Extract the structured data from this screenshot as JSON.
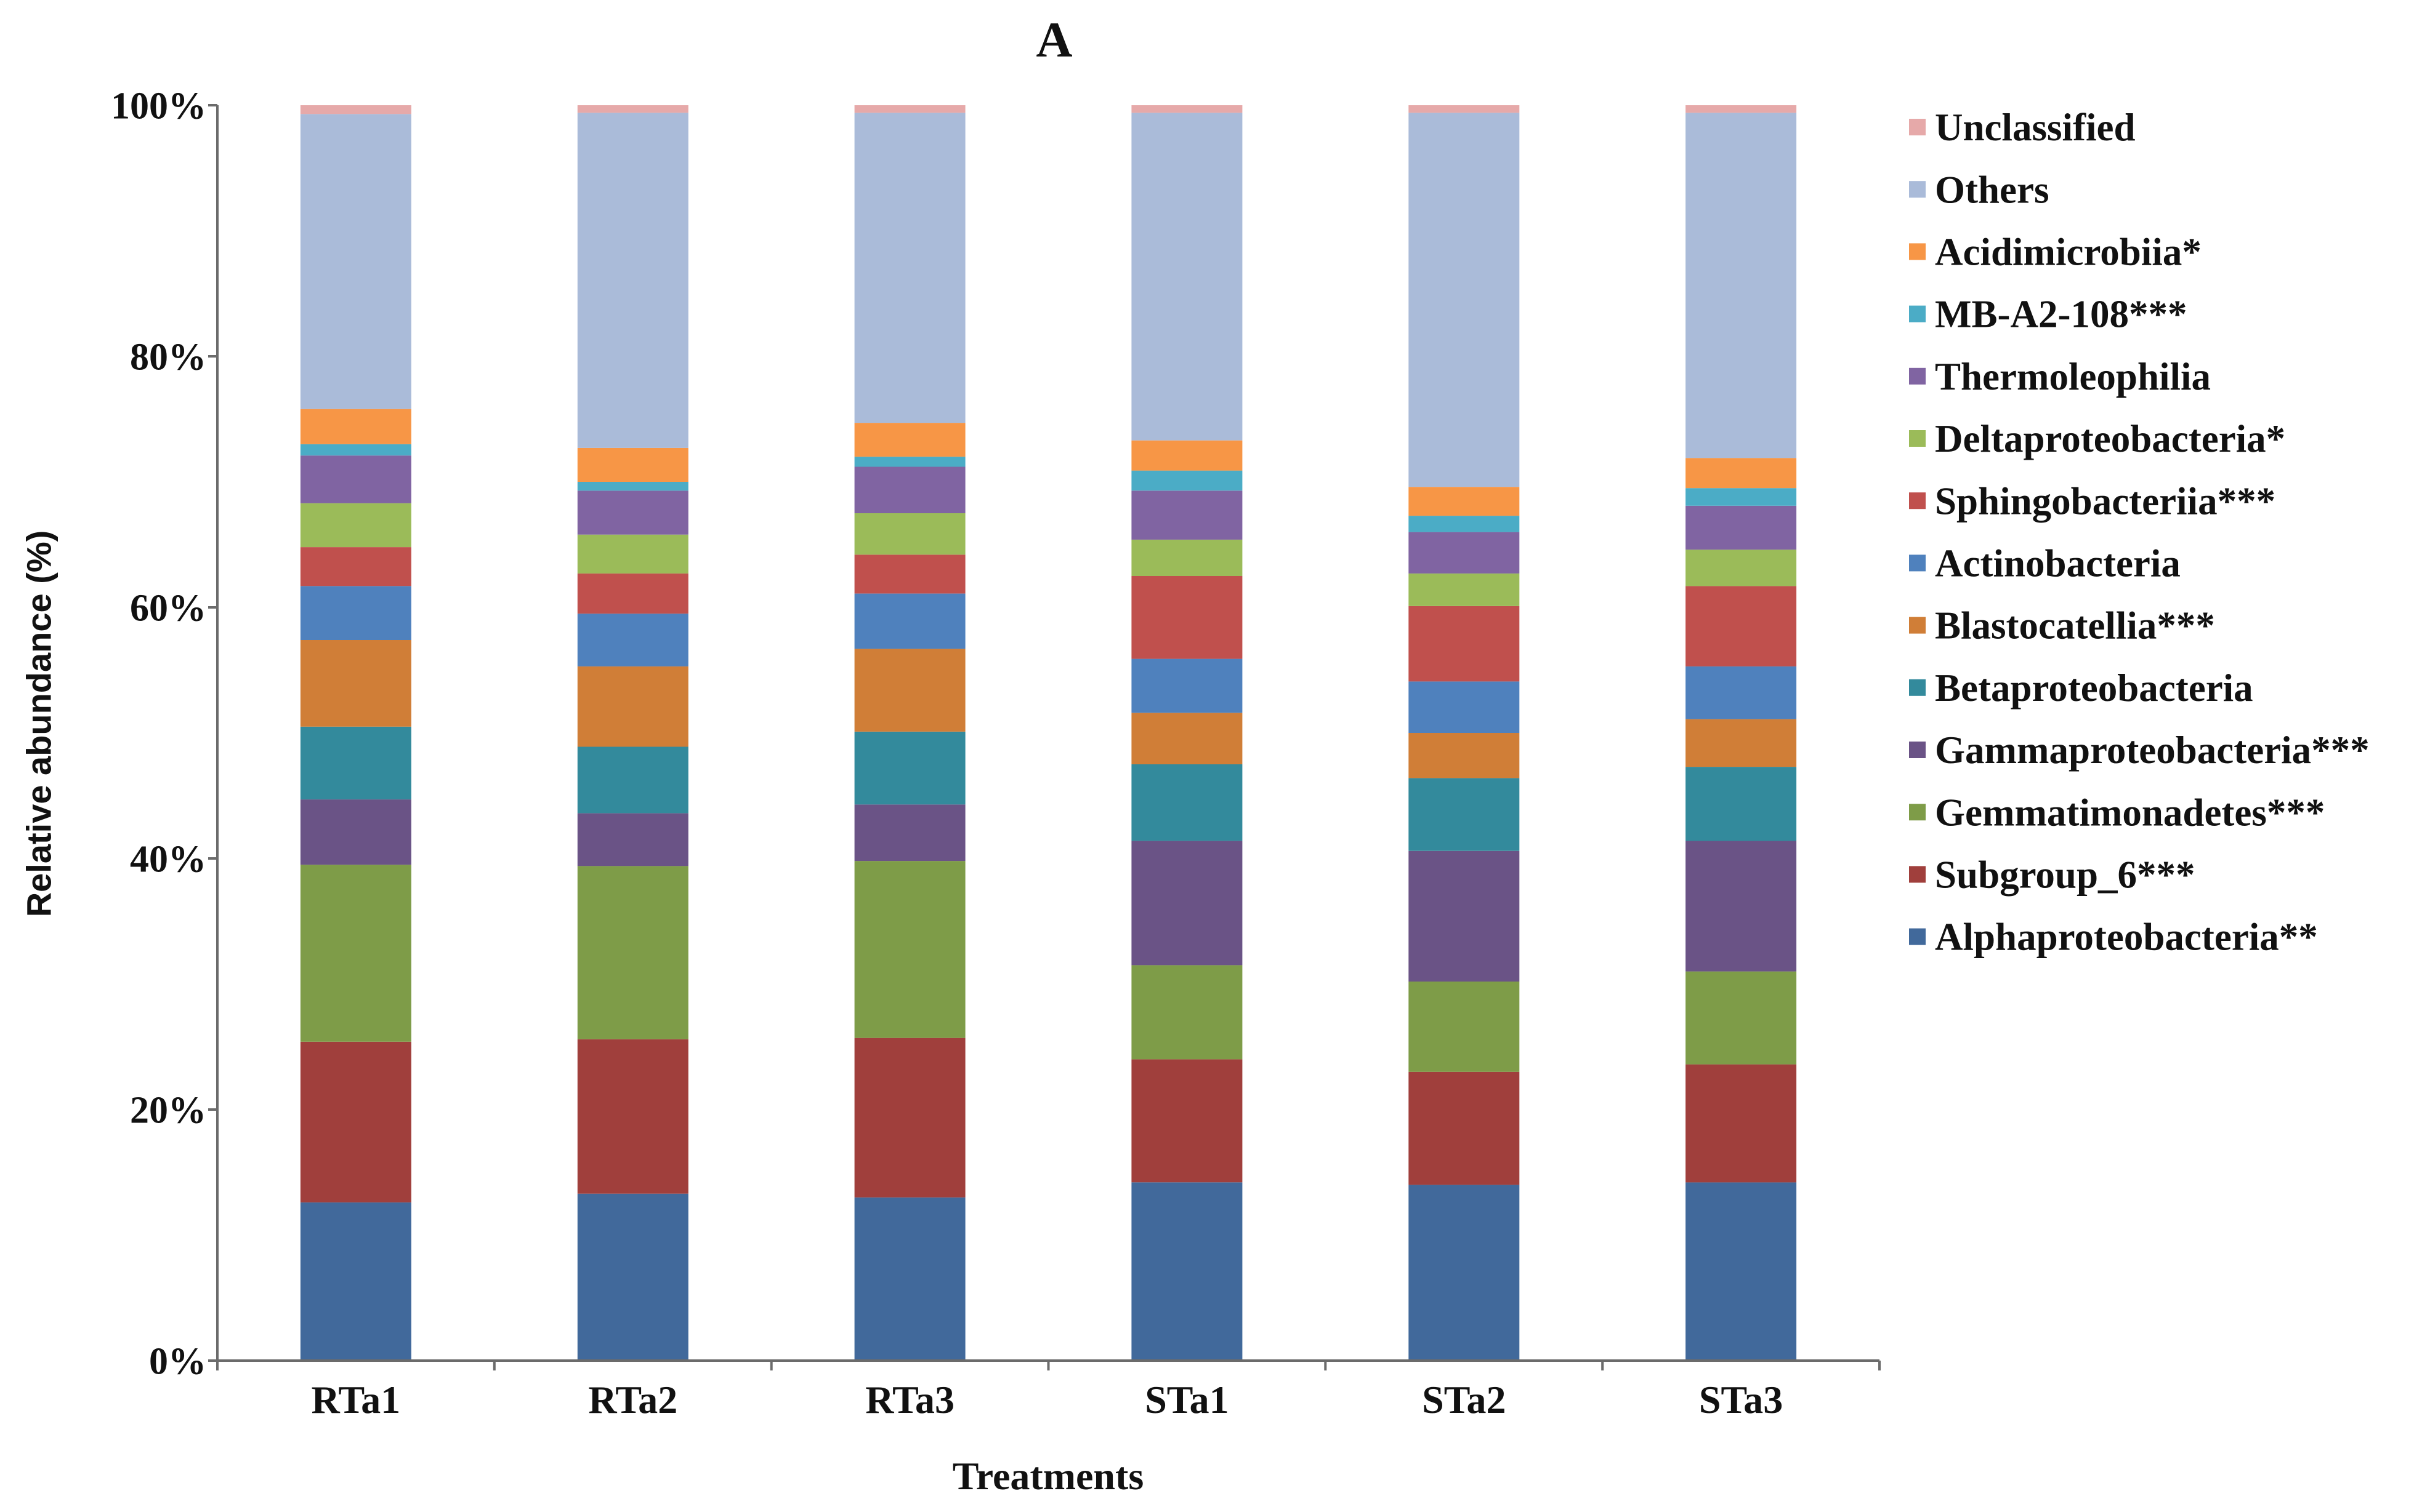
{
  "chart_data": {
    "type": "bar",
    "stacked": true,
    "title": "A",
    "xlabel": "Treatments",
    "ylabel": "Relative abundance (%)",
    "ylim": [
      0,
      100
    ],
    "yticks": [
      0,
      20,
      40,
      60,
      80,
      100
    ],
    "ytick_labels": [
      "0%",
      "20%",
      "40%",
      "60%",
      "80%",
      "100%"
    ],
    "categories": [
      "RTa1",
      "RTa2",
      "RTa3",
      "STa1",
      "STa2",
      "STa3"
    ],
    "legend": "right",
    "series": [
      {
        "name": "Alphaproteobacteria**",
        "color": "#41699B",
        "values": [
          12.6,
          13.3,
          13.0,
          14.2,
          14.0,
          14.2
        ]
      },
      {
        "name": "Subgroup_6***",
        "color": "#A03F3C",
        "values": [
          12.8,
          12.3,
          12.7,
          9.8,
          9.0,
          9.4
        ]
      },
      {
        "name": "Gemmatimonadetes***",
        "color": "#7E9C48",
        "values": [
          14.1,
          13.8,
          14.1,
          7.5,
          7.2,
          7.4
        ]
      },
      {
        "name": "Gammaproteobacteria***",
        "color": "#6A5386",
        "values": [
          5.2,
          4.2,
          4.5,
          9.9,
          10.4,
          10.4
        ]
      },
      {
        "name": "Betaproteobacteria",
        "color": "#338A9C",
        "values": [
          5.8,
          5.3,
          5.8,
          6.1,
          5.8,
          5.9
        ]
      },
      {
        "name": "Blastocatellia***",
        "color": "#D07E37",
        "values": [
          6.9,
          6.4,
          6.6,
          4.1,
          3.6,
          3.8
        ]
      },
      {
        "name": "Actinobacteria",
        "color": "#4F81BD",
        "values": [
          4.3,
          4.2,
          4.4,
          4.3,
          4.1,
          4.2
        ]
      },
      {
        "name": "Sphingobacteriia***",
        "color": "#C0504D",
        "values": [
          3.1,
          3.2,
          3.1,
          6.6,
          6.0,
          6.4
        ]
      },
      {
        "name": "Deltaproteobacteria*",
        "color": "#9BBB59",
        "values": [
          3.5,
          3.1,
          3.3,
          2.9,
          2.6,
          2.9
        ]
      },
      {
        "name": "Thermoleophilia",
        "color": "#8064A2",
        "values": [
          3.8,
          3.5,
          3.7,
          3.9,
          3.3,
          3.5
        ]
      },
      {
        "name": "MB-A2-108***",
        "color": "#4BACC6",
        "values": [
          0.9,
          0.7,
          0.8,
          1.6,
          1.3,
          1.4
        ]
      },
      {
        "name": "Acidimicrobiia*",
        "color": "#F79646",
        "values": [
          2.8,
          2.7,
          2.7,
          2.4,
          2.3,
          2.4
        ]
      },
      {
        "name": "Others",
        "color": "#AABBD9",
        "values": [
          23.5,
          26.7,
          24.7,
          26.1,
          29.8,
          27.5
        ]
      },
      {
        "name": "Unclassified",
        "color": "#E6A9A9",
        "values": [
          0.7,
          0.6,
          0.6,
          0.6,
          0.6,
          0.6
        ]
      }
    ]
  }
}
